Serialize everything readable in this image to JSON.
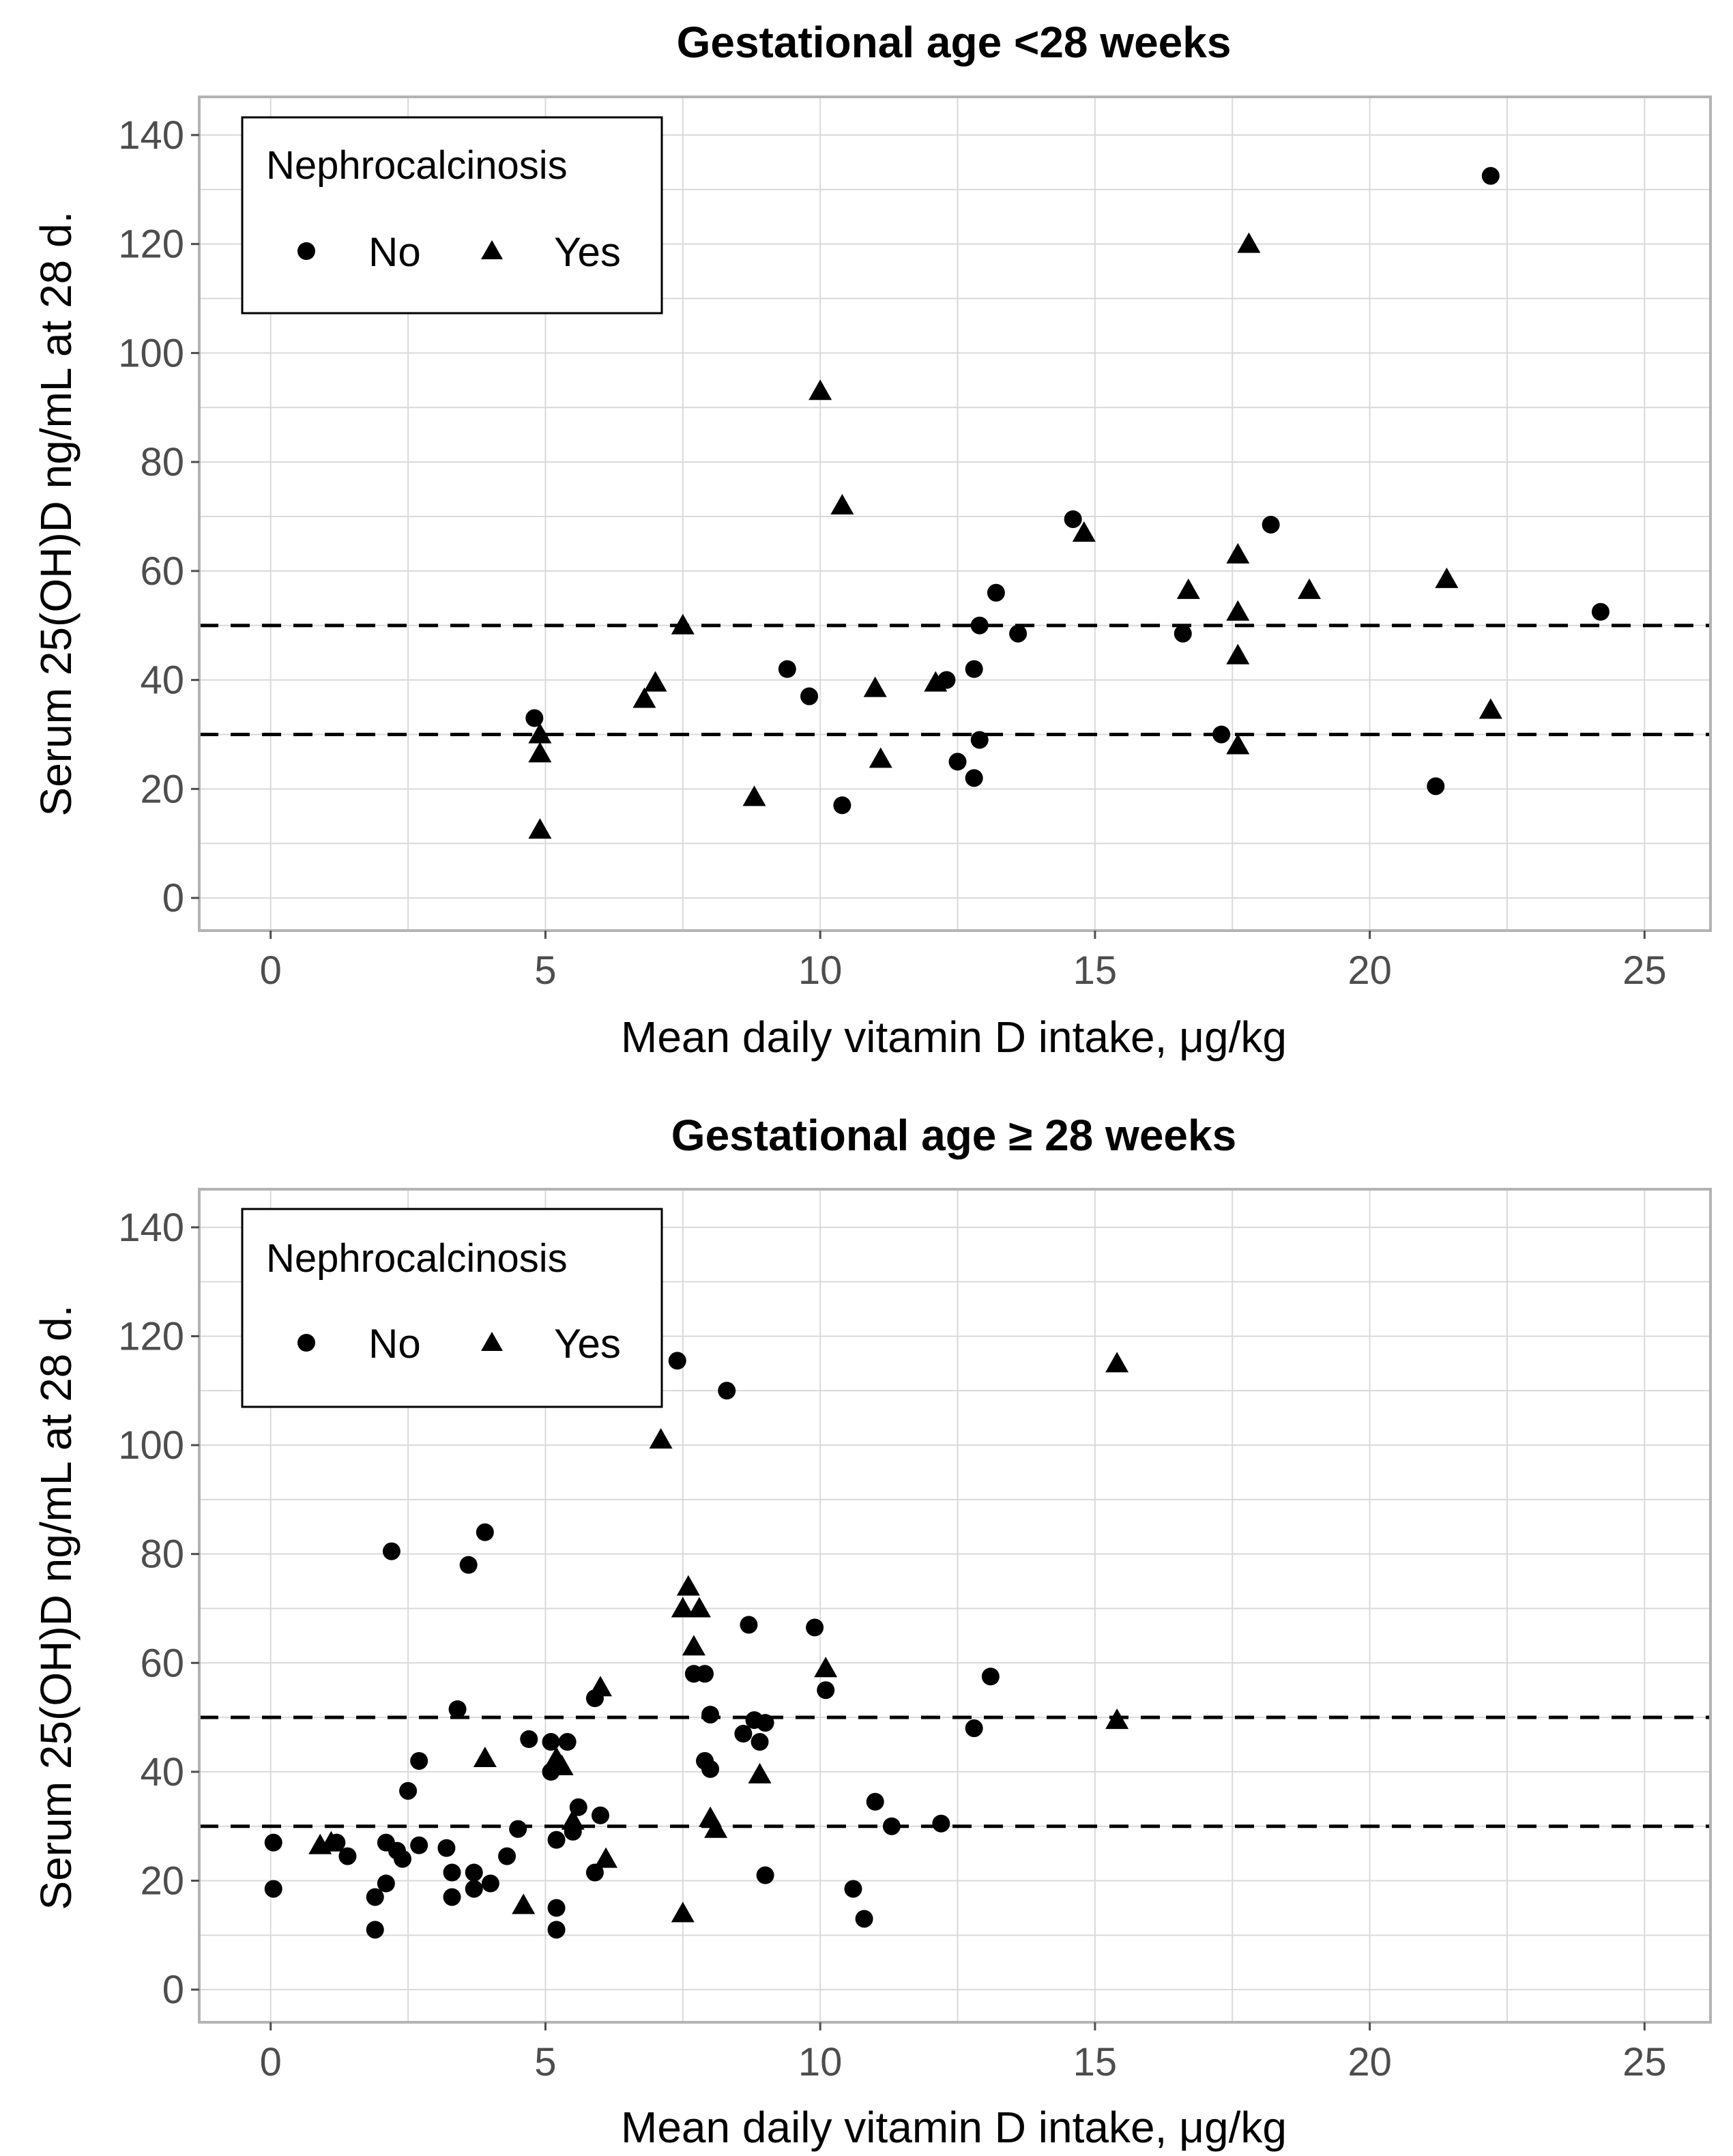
{
  "chart_data": [
    {
      "type": "scatter",
      "title": "Gestational age <28 weeks",
      "xlabel": "Mean daily vitamin D intake, μg/kg",
      "ylabel": "Serum 25(OH)D ng/mL at 28 d.",
      "xlim": [
        -1.3,
        26.2
      ],
      "ylim": [
        -6,
        147
      ],
      "xticks": [
        0,
        5,
        10,
        15,
        20,
        25
      ],
      "yticks": [
        0,
        20,
        40,
        60,
        80,
        100,
        120,
        140
      ],
      "reference_lines": [
        30,
        50
      ],
      "legend": {
        "title": "Nephrocalcinosis",
        "position": "top-left",
        "entries": [
          {
            "label": "No",
            "shape": "circle"
          },
          {
            "label": "Yes",
            "shape": "triangle"
          }
        ]
      },
      "series": [
        {
          "name": "No",
          "shape": "circle",
          "points": [
            [
              4.8,
              33
            ],
            [
              9.4,
              42
            ],
            [
              9.8,
              37
            ],
            [
              10.4,
              17
            ],
            [
              12.3,
              40
            ],
            [
              12.5,
              25
            ],
            [
              12.8,
              42
            ],
            [
              12.8,
              22
            ],
            [
              12.9,
              29
            ],
            [
              12.9,
              50
            ],
            [
              13.2,
              56
            ],
            [
              13.6,
              48.5
            ],
            [
              14.6,
              69.5
            ],
            [
              16.6,
              48.5
            ],
            [
              17.3,
              30
            ],
            [
              18.2,
              68.5
            ],
            [
              21.2,
              20.5
            ],
            [
              22.2,
              132.5
            ],
            [
              24.2,
              52.5
            ]
          ]
        },
        {
          "name": "Yes",
          "shape": "triangle",
          "points": [
            [
              4.9,
              12.5
            ],
            [
              4.9,
              26.5
            ],
            [
              4.9,
              30
            ],
            [
              6.8,
              36.5
            ],
            [
              7.0,
              39.5
            ],
            [
              7.5,
              50
            ],
            [
              8.8,
              18.5
            ],
            [
              10.0,
              93
            ],
            [
              10.4,
              72
            ],
            [
              11.0,
              38.5
            ],
            [
              11.1,
              25.5
            ],
            [
              12.1,
              39.5
            ],
            [
              14.8,
              67
            ],
            [
              16.7,
              56.5
            ],
            [
              17.6,
              44.5
            ],
            [
              17.6,
              52.5
            ],
            [
              17.6,
              63
            ],
            [
              17.6,
              28
            ],
            [
              17.8,
              120
            ],
            [
              18.9,
              56.5
            ],
            [
              21.4,
              58.5
            ],
            [
              22.2,
              34.5
            ]
          ]
        }
      ]
    },
    {
      "type": "scatter",
      "title": "Gestational age ≥ 28 weeks",
      "xlabel": "Mean daily vitamin D intake, μg/kg",
      "ylabel": "Serum 25(OH)D ng/mL at 28 d.",
      "xlim": [
        -1.3,
        26.2
      ],
      "ylim": [
        -6,
        147
      ],
      "xticks": [
        0,
        5,
        10,
        15,
        20,
        25
      ],
      "yticks": [
        0,
        20,
        40,
        60,
        80,
        100,
        120,
        140
      ],
      "reference_lines": [
        30,
        50
      ],
      "legend": {
        "title": "Nephrocalcinosis",
        "position": "top-left",
        "entries": [
          {
            "label": "No",
            "shape": "circle"
          },
          {
            "label": "Yes",
            "shape": "triangle"
          }
        ]
      },
      "series": [
        {
          "name": "No",
          "shape": "circle",
          "points": [
            [
              0.05,
              27
            ],
            [
              0.05,
              18.5
            ],
            [
              1.2,
              27
            ],
            [
              1.4,
              24.5
            ],
            [
              1.9,
              11
            ],
            [
              1.9,
              17
            ],
            [
              2.1,
              19.5
            ],
            [
              2.1,
              27
            ],
            [
              2.2,
              80.5
            ],
            [
              2.3,
              25.5
            ],
            [
              2.4,
              24
            ],
            [
              2.5,
              36.5
            ],
            [
              2.7,
              26.5
            ],
            [
              2.7,
              42
            ],
            [
              3.2,
              26
            ],
            [
              3.3,
              21.5
            ],
            [
              3.3,
              17
            ],
            [
              3.4,
              51.5
            ],
            [
              3.6,
              78
            ],
            [
              3.7,
              21.5
            ],
            [
              3.7,
              18.5
            ],
            [
              3.9,
              84
            ],
            [
              4.0,
              19.5
            ],
            [
              4.3,
              24.5
            ],
            [
              4.5,
              29.5
            ],
            [
              4.7,
              46
            ],
            [
              5.1,
              40
            ],
            [
              5.1,
              45.5
            ],
            [
              5.2,
              15
            ],
            [
              5.2,
              11
            ],
            [
              5.2,
              27.5
            ],
            [
              5.4,
              45.5
            ],
            [
              5.5,
              29
            ],
            [
              5.6,
              33.5
            ],
            [
              5.9,
              21.5
            ],
            [
              5.9,
              53.5
            ],
            [
              6.0,
              32
            ],
            [
              7.4,
              115.5
            ],
            [
              7.7,
              58
            ],
            [
              7.9,
              42
            ],
            [
              7.9,
              58
            ],
            [
              8.0,
              50.5
            ],
            [
              8.0,
              40.5
            ],
            [
              8.3,
              110
            ],
            [
              8.6,
              47
            ],
            [
              8.7,
              67
            ],
            [
              8.8,
              49.5
            ],
            [
              8.9,
              45.5
            ],
            [
              9.0,
              21
            ],
            [
              9.0,
              49
            ],
            [
              9.9,
              66.5
            ],
            [
              10.1,
              55
            ],
            [
              11.0,
              34.5
            ],
            [
              10.6,
              18.5
            ],
            [
              10.8,
              13
            ],
            [
              11.3,
              30
            ],
            [
              12.2,
              30.5
            ],
            [
              12.8,
              48
            ],
            [
              13.1,
              57.5
            ]
          ]
        },
        {
          "name": "Yes",
          "shape": "triangle",
          "points": [
            [
              0.9,
              26.5
            ],
            [
              1.1,
              27
            ],
            [
              3.9,
              42.5
            ],
            [
              4.6,
              15.5
            ],
            [
              5.2,
              42.5
            ],
            [
              5.3,
              41
            ],
            [
              5.5,
              31
            ],
            [
              6.0,
              55.5
            ],
            [
              6.1,
              24
            ],
            [
              7.1,
              101
            ],
            [
              7.5,
              14
            ],
            [
              7.5,
              70
            ],
            [
              7.6,
              74
            ],
            [
              7.7,
              63
            ],
            [
              7.8,
              70
            ],
            [
              8.0,
              31.5
            ],
            [
              8.1,
              29.5
            ],
            [
              8.9,
              39.5
            ],
            [
              10.1,
              59
            ],
            [
              15.4,
              115
            ],
            [
              15.4,
              49.5
            ]
          ]
        }
      ]
    }
  ]
}
